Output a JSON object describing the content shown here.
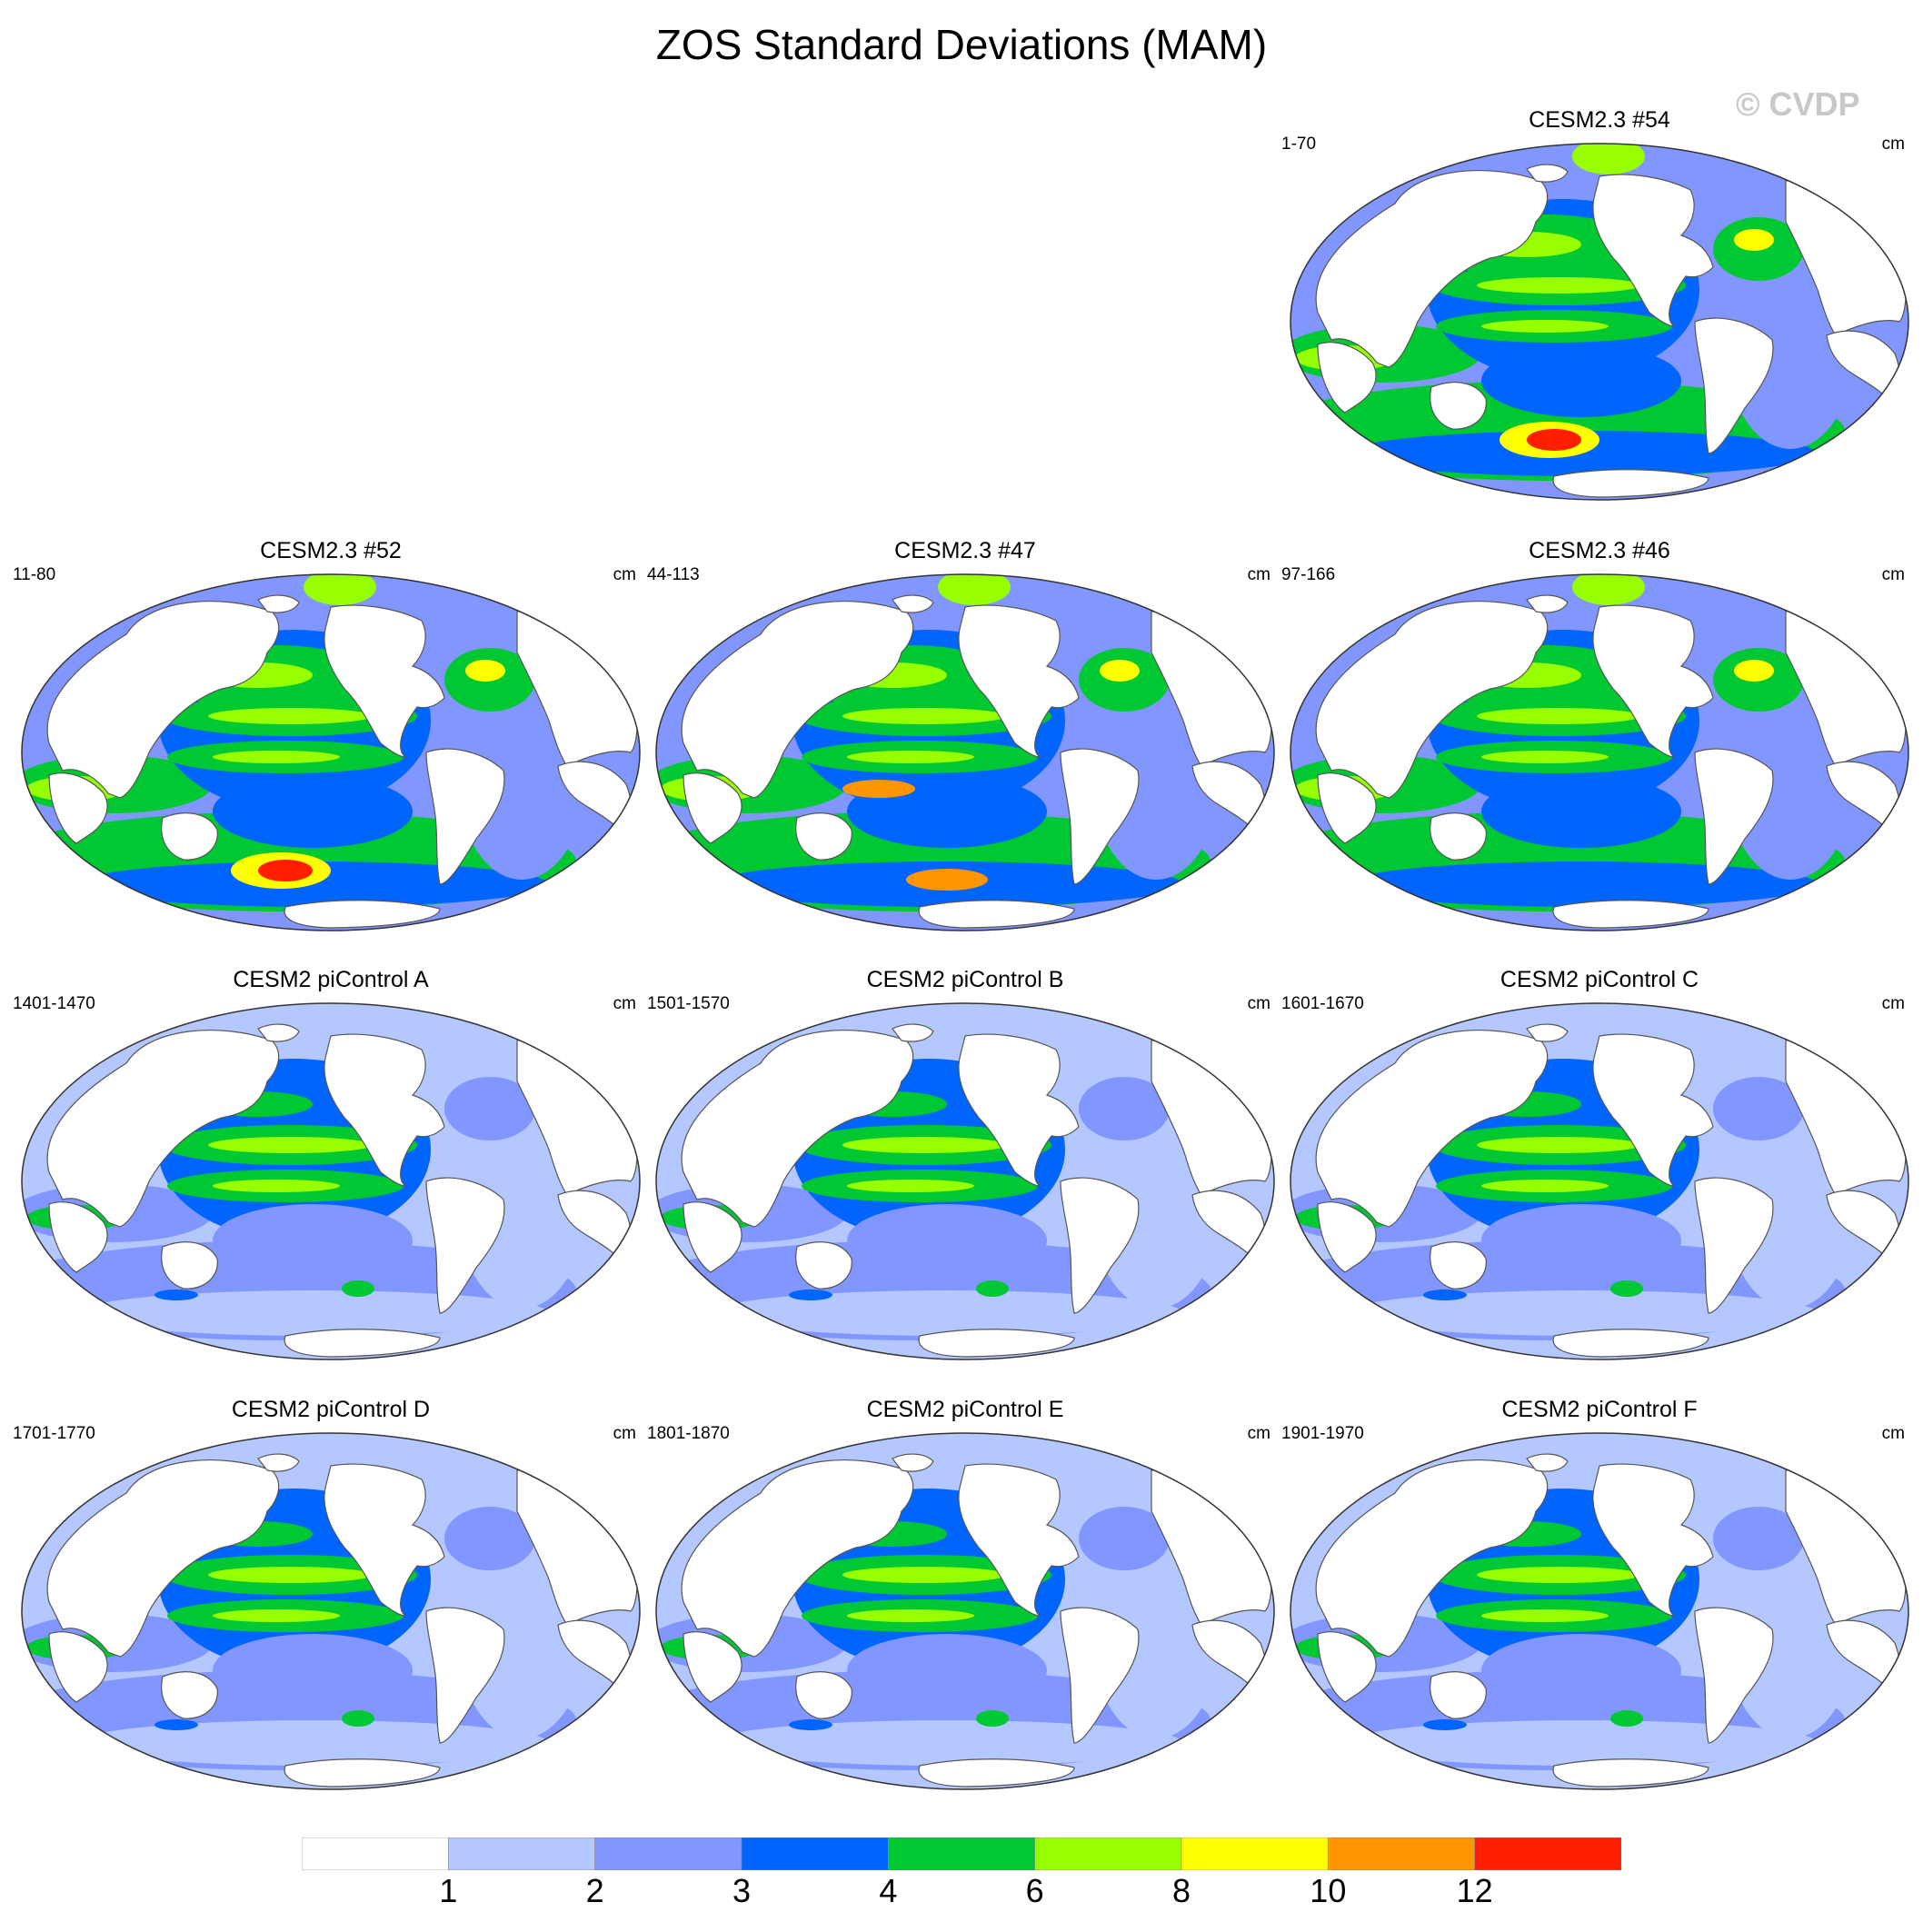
{
  "title": "ZOS Standard Deviations (MAM)",
  "watermark": "© CVDP",
  "panels": [
    {
      "title": "CESM2.3 #54",
      "years": "1-70",
      "units": "cm",
      "variant": "cesm23",
      "hot": "sopac"
    },
    {
      "title": "CESM2.3 #52",
      "years": "11-80",
      "units": "cm",
      "variant": "cesm23",
      "hot": "sopac"
    },
    {
      "title": "CESM2.3 #47",
      "years": "44-113",
      "units": "cm",
      "variant": "cesm23",
      "hot": "eqpac"
    },
    {
      "title": "CESM2.3 #46",
      "years": "97-166",
      "units": "cm",
      "variant": "cesm23",
      "hot": "none"
    },
    {
      "title": "CESM2 piControl A",
      "years": "1401-1470",
      "units": "cm",
      "variant": "picontrol",
      "hot": "none"
    },
    {
      "title": "CESM2 piControl B",
      "years": "1501-1570",
      "units": "cm",
      "variant": "picontrol",
      "hot": "none"
    },
    {
      "title": "CESM2 piControl C",
      "years": "1601-1670",
      "units": "cm",
      "variant": "picontrol",
      "hot": "none"
    },
    {
      "title": "CESM2 piControl D",
      "years": "1701-1770",
      "units": "cm",
      "variant": "picontrol",
      "hot": "none"
    },
    {
      "title": "CESM2 piControl E",
      "years": "1801-1870",
      "units": "cm",
      "variant": "picontrol",
      "hot": "none"
    },
    {
      "title": "CESM2 piControl F",
      "years": "1901-1970",
      "units": "cm",
      "variant": "picontrol",
      "hot": "none"
    }
  ],
  "colorbar": {
    "levels": [
      "1",
      "2",
      "3",
      "4",
      "6",
      "8",
      "10",
      "12"
    ],
    "colors": [
      "#ffffff",
      "#b4c8ff",
      "#8296ff",
      "#0064ff",
      "#00c832",
      "#96ff00",
      "#ffff00",
      "#ff9600",
      "#ff1e00"
    ]
  },
  "palette": {
    "land": "#ffffff",
    "coast": "#555555",
    "outline": "#333333"
  }
}
